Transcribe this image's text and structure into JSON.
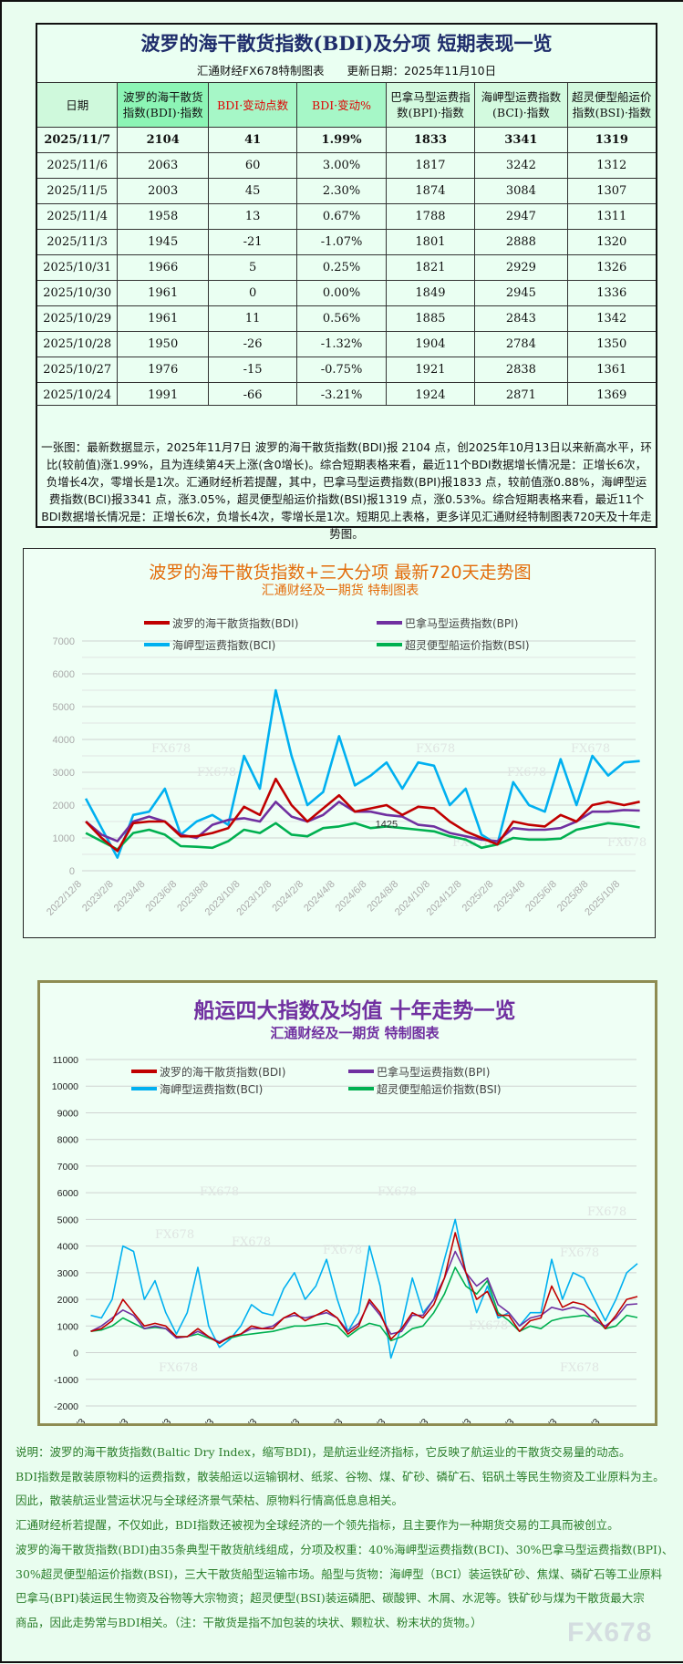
{
  "table": {
    "title": "波罗的海干散货指数(BDI)及分项 短期表现一览",
    "subtitle": "汇通财经FX678特制图表　　更新日期：2025年11月10日",
    "headers": [
      "日期",
      "波罗的海干散货指数(BDI)·指数",
      "BDI·变动点数",
      "BDI·变动%",
      "巴拿马型运费指数(BPI)·指数",
      "海岬型运费指数(BCI)·指数",
      "超灵便型船运价指数(BSI)·指数"
    ],
    "rows": [
      [
        "2025/11/7",
        "2104",
        "41",
        "1.99%",
        "1833",
        "3341",
        "1319"
      ],
      [
        "2025/11/6",
        "2063",
        "60",
        "3.00%",
        "1817",
        "3242",
        "1312"
      ],
      [
        "2025/11/5",
        "2003",
        "45",
        "2.30%",
        "1874",
        "3084",
        "1307"
      ],
      [
        "2025/11/4",
        "1958",
        "13",
        "0.67%",
        "1788",
        "2947",
        "1311"
      ],
      [
        "2025/11/3",
        "1945",
        "-21",
        "-1.07%",
        "1801",
        "2888",
        "1320"
      ],
      [
        "2025/10/31",
        "1966",
        "5",
        "0.25%",
        "1821",
        "2929",
        "1326"
      ],
      [
        "2025/10/30",
        "1961",
        "0",
        "0.00%",
        "1849",
        "2945",
        "1336"
      ],
      [
        "2025/10/29",
        "1961",
        "11",
        "0.56%",
        "1885",
        "2843",
        "1342"
      ],
      [
        "2025/10/28",
        "1950",
        "-26",
        "-1.32%",
        "1904",
        "2784",
        "1350"
      ],
      [
        "2025/10/27",
        "1976",
        "-15",
        "-0.75%",
        "1921",
        "2838",
        "1361"
      ],
      [
        "2025/10/24",
        "1991",
        "-66",
        "-3.21%",
        "1924",
        "2871",
        "1369"
      ]
    ],
    "note": "一张图：最新数据显示，2025年11月7日 波罗的海干散货指数(BDI)报 2104 点，创2025年10月13日以来新高水平，环比(较前值)涨1.99%，且为连续第4天上涨(含0增长)。综合短期表格来看，最近11个BDI数据增长情况是：正增长6次，负增长4次，零增长是1次。汇通财经析若提醒，其中，巴拿马型运费指数(BPI)报1833 点，较前值涨0.88%，海岬型运费指数(BCI)报3341 点，涨3.05%，超灵便型船运价指数(BSI)报1319 点，涨0.53%。综合短期表格来看，最近11个BDI数据增长情况是：正增长6次，负增长4次，零增长是1次。短期见上表格，更多详见汇通财经特制图表720天及十年走势图。"
  },
  "colors": {
    "BDI": "#c00000",
    "BPI": "#7030a0",
    "BCI": "#00b0f0",
    "BSI": "#00b050",
    "chart1_title": "#e36c0a",
    "chart2_title": "#7030a0",
    "text_green": "#2a7d2a"
  },
  "chart_data": [
    {
      "type": "line",
      "title": "波罗的海干散货指数+三大分项  最新720天走势图",
      "subtitle": "汇通财经及一期货  特制图表",
      "ylim": [
        0,
        7000
      ],
      "yticks": [
        0,
        1000,
        2000,
        3000,
        4000,
        5000,
        6000,
        7000
      ],
      "grid": true,
      "legend": "top",
      "xlim": [
        "2022/12/8",
        "2025/11/7"
      ],
      "xticks": [
        "2022/12/8",
        "2023/2/8",
        "2023/4/8",
        "2023/6/8",
        "2023/8/8",
        "2023/10/8",
        "2023/12/8",
        "2024/2/8",
        "2024/4/8",
        "2024/6/8",
        "2024/8/8",
        "2024/10/8",
        "2024/12/8",
        "2025/2/8",
        "2025/4/8",
        "2025/6/8",
        "2025/8/8",
        "2025/10/8"
      ],
      "x": [
        "2022-12",
        "2023-01",
        "2023-02",
        "2023-03",
        "2023-04",
        "2023-05",
        "2023-06",
        "2023-07",
        "2023-08",
        "2023-09",
        "2023-10",
        "2023-11",
        "2023-12",
        "2024-01",
        "2024-02",
        "2024-03",
        "2024-04",
        "2024-05",
        "2024-06",
        "2024-07",
        "2024-08",
        "2024-09",
        "2024-10",
        "2024-11",
        "2024-12",
        "2025-01",
        "2025-02",
        "2025-03",
        "2025-04",
        "2025-05",
        "2025-06",
        "2025-07",
        "2025-08",
        "2025-09",
        "2025-10",
        "2025-11"
      ],
      "series": [
        {
          "name": "波罗的海干散货指数(BDI)",
          "key": "BDI",
          "values": [
            1500,
            1000,
            600,
            1450,
            1500,
            1500,
            1050,
            1050,
            1150,
            1300,
            1950,
            1700,
            2800,
            2000,
            1500,
            1900,
            2300,
            1800,
            1900,
            2000,
            1700,
            1950,
            1900,
            1500,
            1200,
            1000,
            800,
            1500,
            1400,
            1350,
            1700,
            1500,
            2000,
            2100,
            2000,
            2104
          ]
        },
        {
          "name": "巴拿马型运费指数(BPI)",
          "key": "BPI",
          "values": [
            1500,
            1100,
            900,
            1500,
            1650,
            1500,
            1100,
            1000,
            1400,
            1550,
            1600,
            1500,
            2100,
            1650,
            1500,
            1700,
            2100,
            1800,
            1800,
            1700,
            1650,
            1400,
            1350,
            1150,
            1050,
            950,
            900,
            1300,
            1250,
            1250,
            1300,
            1500,
            1800,
            1800,
            1850,
            1833
          ]
        },
        {
          "name": "海岬型运费指数(BCI)",
          "key": "BCI",
          "values": [
            2200,
            1300,
            400,
            1700,
            1800,
            2500,
            1100,
            1500,
            1700,
            1400,
            3500,
            2500,
            5500,
            3500,
            2000,
            2400,
            4100,
            2600,
            2900,
            3300,
            2500,
            3300,
            3200,
            2000,
            2500,
            1100,
            800,
            2700,
            2000,
            1800,
            3400,
            2000,
            3500,
            2900,
            3300,
            3341
          ]
        },
        {
          "name": "超灵便型船运价指数(BSI)",
          "key": "BSI",
          "values": [
            1150,
            900,
            650,
            1150,
            1250,
            1100,
            750,
            730,
            700,
            900,
            1250,
            1150,
            1450,
            1100,
            1050,
            1300,
            1350,
            1450,
            1300,
            1350,
            1300,
            1250,
            1200,
            1050,
            950,
            700,
            800,
            1000,
            950,
            950,
            980,
            1250,
            1350,
            1450,
            1400,
            1319
          ]
        }
      ],
      "annotations": [
        {
          "text": "1425",
          "x": "2024-07",
          "y": 1425
        }
      ],
      "watermark": "FX678"
    },
    {
      "type": "line",
      "title": "船运四大指数及均值 十年走势一览",
      "subtitle": "汇通财经及一期货 特制图表",
      "ylim": [
        -2000,
        11000
      ],
      "yticks": [
        -2000,
        -1000,
        0,
        1000,
        2000,
        3000,
        4000,
        5000,
        6000,
        7000,
        8000,
        9000,
        10000,
        11000
      ],
      "grid": true,
      "legend": "top",
      "xlim": [
        "2013/1/3",
        "2025/11/7"
      ],
      "xticks": [
        "2013/1/3",
        "2014/1/3",
        "2015/1/3",
        "2016/1/3",
        "2017/1/3",
        "2018/1/3",
        "2019/1/3",
        "2020/1/3",
        "2021/1/3",
        "2022/1/3",
        "2023/1/3",
        "2024/1/3",
        "2025/1/3"
      ],
      "x": [
        "2013-02",
        "2013-05",
        "2013-08",
        "2013-11",
        "2014-02",
        "2014-05",
        "2014-08",
        "2014-11",
        "2015-02",
        "2015-05",
        "2015-08",
        "2015-11",
        "2016-02",
        "2016-05",
        "2016-08",
        "2016-11",
        "2017-02",
        "2017-05",
        "2017-08",
        "2017-11",
        "2018-02",
        "2018-05",
        "2018-08",
        "2018-11",
        "2019-02",
        "2019-05",
        "2019-08",
        "2019-11",
        "2020-02",
        "2020-05",
        "2020-08",
        "2020-11",
        "2021-02",
        "2021-05",
        "2021-08",
        "2021-11",
        "2022-02",
        "2022-05",
        "2022-08",
        "2022-11",
        "2023-02",
        "2023-05",
        "2023-08",
        "2023-11",
        "2024-02",
        "2024-05",
        "2024-08",
        "2024-11",
        "2025-02",
        "2025-05",
        "2025-08",
        "2025-11"
      ],
      "series": [
        {
          "name": "波罗的海干散货指数(BDI)",
          "key": "BDI",
          "values": [
            800,
            900,
            1200,
            2000,
            1500,
            1000,
            1100,
            1000,
            600,
            600,
            900,
            600,
            350,
            600,
            700,
            1000,
            900,
            900,
            1300,
            1500,
            1200,
            1400,
            1600,
            1300,
            700,
            1000,
            2000,
            1500,
            500,
            900,
            1500,
            1300,
            1800,
            2800,
            4500,
            3000,
            2000,
            2300,
            1400,
            1400,
            800,
            1200,
            1300,
            2500,
            1700,
            1900,
            1800,
            1500,
            900,
            1400,
            2000,
            2104
          ]
        },
        {
          "name": "巴拿马型运费指数(BPI)",
          "key": "BPI",
          "values": [
            800,
            1000,
            1300,
            1600,
            1400,
            900,
            1000,
            900,
            550,
            600,
            800,
            600,
            400,
            600,
            700,
            900,
            900,
            1000,
            1300,
            1400,
            1300,
            1400,
            1500,
            1300,
            800,
            1100,
            1900,
            1400,
            700,
            800,
            1400,
            1400,
            2000,
            2800,
            3800,
            3000,
            2500,
            2800,
            1800,
            1500,
            1000,
            1300,
            1400,
            1700,
            1600,
            1700,
            1600,
            1200,
            1000,
            1300,
            1800,
            1833
          ]
        },
        {
          "name": "海岬型运费指数(BCI)",
          "key": "BCI",
          "values": [
            1400,
            1300,
            2000,
            4000,
            3800,
            2000,
            2700,
            1500,
            700,
            1500,
            3200,
            1000,
            200,
            500,
            1000,
            1800,
            1500,
            1400,
            2400,
            3000,
            2000,
            2500,
            3500,
            2000,
            800,
            1500,
            4000,
            2500,
            -200,
            1000,
            2800,
            1500,
            2000,
            3500,
            5000,
            3000,
            1500,
            2500,
            1300,
            1500,
            1000,
            1500,
            1500,
            3500,
            2000,
            3000,
            2800,
            2000,
            1200,
            2000,
            3000,
            3341
          ]
        },
        {
          "name": "超灵便型船运价指数(BSI)",
          "key": "BSI",
          "values": [
            800,
            850,
            1000,
            1300,
            1100,
            900,
            950,
            900,
            600,
            600,
            700,
            550,
            400,
            550,
            650,
            700,
            750,
            800,
            900,
            1000,
            1000,
            1050,
            1100,
            1000,
            600,
            900,
            1100,
            1000,
            450,
            600,
            900,
            1000,
            1500,
            2200,
            3200,
            2500,
            2200,
            2700,
            1500,
            1200,
            800,
            1000,
            900,
            1200,
            1300,
            1350,
            1400,
            1300,
            900,
            1000,
            1400,
            1319
          ]
        }
      ],
      "watermark": "FX678"
    }
  ],
  "description": [
    "说明：波罗的海干散货指数(Baltic Dry Index，缩写BDI)，是航运业经济指标，它反映了航运业的干散货交易量的动态。",
    "BDI指数是散装原物料的运费指数，散装船运以运输钢材、纸浆、谷物、煤、矿砂、磷矿石、铝矾土等民生物资及工业原料为主。",
    "因此，散装航运业营运状况与全球经济景气荣枯、原物料行情高低息息相关。",
    "汇通财经析若提醒，不仅如此，BDI指数还被视为全球经济的一个领先指标，且主要作为一种期货交易的工具而被创立。",
    "波罗的海干散货指数(BDI)由35条典型干散货航线组成，分项及权重：40%海岬型运费指数(BCI)、30%巴拿马型运费指数(BPI)、",
    "30%超灵便型船运价指数(BSI)，三大干散货船型运输市场。船型与货物：海岬型（BCI）装运铁矿砂、焦煤、磷矿石等工业原料",
    "巴拿马(BPI)装运民生物资及谷物等大宗物资；超灵便型(BSI)装运磷肥、碳酸钾、木屑、水泥等。铁矿砂与煤为干散货最大宗",
    "商品，因此走势常与BDI相关。（注：干散货是指不加包装的块状、颗粒状、粉末状的货物。）"
  ],
  "logo": "FX678"
}
